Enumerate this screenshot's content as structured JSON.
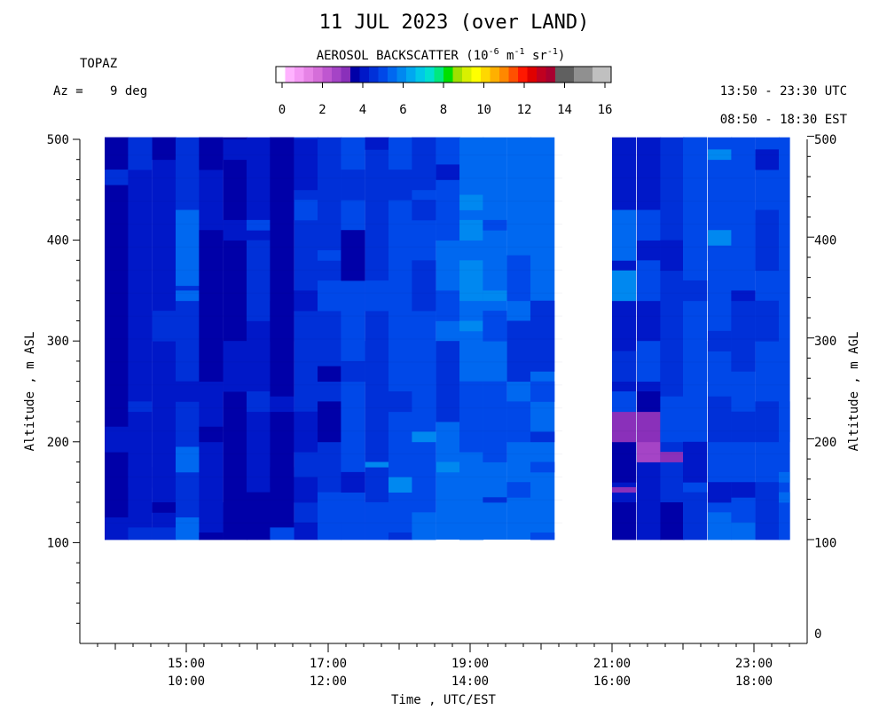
{
  "chart_data": {
    "type": "heatmap",
    "title": "11 JUL 2023 (over LAND)",
    "instrument": "TOPAZ",
    "azimuth_label": "Az =",
    "azimuth_value": "9 deg",
    "time_range_utc": "13:50 - 23:30 UTC",
    "time_range_est": "08:50 - 18:30 EST",
    "colorbar": {
      "label_main": "AEROSOL BACKSCATTER (10",
      "label_exp1": "-6",
      "label_mid1": " m",
      "label_exp2": "-1",
      "label_mid2": " sr",
      "label_exp3": "-1",
      "label_end": ")",
      "ticks": [
        "0",
        "2",
        "4",
        "6",
        "8",
        "10",
        "12",
        "14",
        "16"
      ],
      "range": [
        0,
        16
      ],
      "colors": [
        "#ffffff",
        "#ffb3ff",
        "#f59af5",
        "#e683e6",
        "#d56ed9",
        "#bf57d0",
        "#a544c6",
        "#8a30ba",
        "#0000a8",
        "#0018c8",
        "#0030d8",
        "#0048e8",
        "#0068f0",
        "#0088f0",
        "#00a8f0",
        "#00c8e8",
        "#00e0d0",
        "#00e880",
        "#00e000",
        "#a0e000",
        "#d8f000",
        "#ffff00",
        "#ffd800",
        "#ffb000",
        "#ff8800",
        "#ff5000",
        "#ff1800",
        "#e00000",
        "#c00020",
        "#a80030",
        "#606060",
        "#606060",
        "#909090",
        "#909090",
        "#c0c0c0",
        "#c0c0c0"
      ]
    },
    "x_axis": {
      "label": "Time , UTC/EST",
      "range_hours_utc": [
        13.5,
        23.75
      ],
      "ticks_utc": [
        "15:00",
        "17:00",
        "19:00",
        "21:00",
        "23:00"
      ],
      "ticks_est": [
        "10:00",
        "12:00",
        "14:00",
        "16:00",
        "18:00"
      ]
    },
    "y_axis_left": {
      "label": "Altitude , m ASL",
      "range": [
        0,
        500
      ],
      "ticks": [
        "100",
        "200",
        "300",
        "400",
        "500"
      ]
    },
    "y_axis_right": {
      "label": "Altitude , m AGL",
      "ticks": [
        "0",
        "100",
        "200",
        "300",
        "400",
        "500"
      ]
    },
    "data_altitude_range_m": [
      103,
      502
    ],
    "altitude_bin_m": 11.4,
    "time_segments_utc": [
      [
        13.85,
        20.3
      ],
      [
        21.0,
        23.5
      ]
    ],
    "time_bin_hours": 0.333,
    "color_classes": {
      "navy": "#0000a8",
      "dark": "#0018c8",
      "mid": "#0030d8",
      "royal": "#0048e8",
      "light": "#0068f0",
      "bright": "#0088f0",
      "purple": "#8a30ba",
      "violet": "#a544c6"
    },
    "backscatter_columns": [
      {
        "t": 13.85,
        "base": "navy",
        "patches": [
          [
            103,
            125,
            "dark"
          ],
          [
            190,
            215,
            "dark"
          ],
          [
            400,
            502,
            "navy"
          ],
          [
            455,
            470,
            "mid"
          ]
        ]
      },
      {
        "t": 14.18,
        "base": "dark",
        "patches": [
          [
            103,
            115,
            "mid"
          ],
          [
            155,
            175,
            "dark"
          ],
          [
            230,
            240,
            "mid"
          ],
          [
            470,
            502,
            "mid"
          ]
        ]
      },
      {
        "t": 14.52,
        "base": "dark",
        "patches": [
          [
            103,
            115,
            "mid"
          ],
          [
            130,
            140,
            "navy"
          ],
          [
            300,
            330,
            "mid"
          ],
          [
            480,
            502,
            "navy"
          ]
        ]
      },
      {
        "t": 14.85,
        "base": "mid",
        "patches": [
          [
            103,
            125,
            "light"
          ],
          [
            170,
            195,
            "light"
          ],
          [
            340,
            350,
            "light"
          ],
          [
            355,
            430,
            "light"
          ],
          [
            240,
            260,
            "dark"
          ]
        ]
      },
      {
        "t": 15.18,
        "base": "dark",
        "patches": [
          [
            103,
            110,
            "navy"
          ],
          [
            200,
            215,
            "navy"
          ],
          [
            260,
            410,
            "navy"
          ],
          [
            470,
            502,
            "navy"
          ]
        ]
      },
      {
        "t": 15.52,
        "base": "navy",
        "patches": [
          [
            103,
            140,
            "navy"
          ],
          [
            250,
            300,
            "dark"
          ],
          [
            400,
            420,
            "dark"
          ],
          [
            480,
            500,
            "dark"
          ]
        ]
      },
      {
        "t": 15.85,
        "base": "dark",
        "patches": [
          [
            103,
            150,
            "navy"
          ],
          [
            230,
            250,
            "mid"
          ],
          [
            320,
            400,
            "mid"
          ],
          [
            410,
            420,
            "royal"
          ]
        ]
      },
      {
        "t": 16.18,
        "base": "navy",
        "patches": [
          [
            103,
            115,
            "royal"
          ],
          [
            155,
            175,
            "navy"
          ],
          [
            230,
            245,
            "dark"
          ],
          [
            300,
            340,
            "navy"
          ],
          [
            430,
            502,
            "navy"
          ]
        ]
      },
      {
        "t": 16.52,
        "base": "mid",
        "patches": [
          [
            103,
            120,
            "dark"
          ],
          [
            140,
            165,
            "dark"
          ],
          [
            190,
            230,
            "dark"
          ],
          [
            330,
            350,
            "dark"
          ],
          [
            420,
            440,
            "royal"
          ],
          [
            450,
            500,
            "dark"
          ]
        ]
      },
      {
        "t": 16.85,
        "base": "mid",
        "patches": [
          [
            103,
            150,
            "royal"
          ],
          [
            200,
            240,
            "navy"
          ],
          [
            330,
            360,
            "royal"
          ],
          [
            380,
            390,
            "royal"
          ],
          [
            260,
            275,
            "navy"
          ]
        ]
      },
      {
        "t": 17.18,
        "base": "royal",
        "patches": [
          [
            103,
            120,
            "royal"
          ],
          [
            150,
            170,
            "dark"
          ],
          [
            260,
            280,
            "mid"
          ],
          [
            360,
            410,
            "navy"
          ],
          [
            440,
            470,
            "mid"
          ]
        ]
      },
      {
        "t": 17.52,
        "base": "mid",
        "patches": [
          [
            103,
            140,
            "royal"
          ],
          [
            175,
            180,
            "bright"
          ],
          [
            260,
            300,
            "mid"
          ],
          [
            330,
            360,
            "royal"
          ],
          [
            490,
            502,
            "dark"
          ]
        ]
      },
      {
        "t": 17.85,
        "base": "royal",
        "patches": [
          [
            103,
            110,
            "mid"
          ],
          [
            150,
            165,
            "bright"
          ],
          [
            230,
            250,
            "mid"
          ],
          [
            260,
            280,
            "royal"
          ],
          [
            330,
            480,
            "royal"
          ],
          [
            440,
            470,
            "mid"
          ]
        ]
      },
      {
        "t": 18.18,
        "base": "royal",
        "patches": [
          [
            103,
            130,
            "light"
          ],
          [
            200,
            210,
            "bright"
          ],
          [
            260,
            300,
            "royal"
          ],
          [
            330,
            380,
            "mid"
          ],
          [
            420,
            440,
            "mid"
          ],
          [
            450,
            502,
            "mid"
          ]
        ]
      },
      {
        "t": 18.52,
        "base": "light",
        "patches": [
          [
            170,
            180,
            "bright"
          ],
          [
            220,
            300,
            "mid"
          ],
          [
            320,
            350,
            "royal"
          ],
          [
            400,
            502,
            "royal"
          ],
          [
            460,
            475,
            "dark"
          ]
        ]
      },
      {
        "t": 18.85,
        "base": "light",
        "patches": [
          [
            103,
            115,
            "light"
          ],
          [
            190,
            260,
            "royal"
          ],
          [
            310,
            320,
            "bright"
          ],
          [
            340,
            350,
            "bright"
          ],
          [
            350,
            380,
            "bright"
          ],
          [
            400,
            420,
            "bright"
          ],
          [
            430,
            445,
            "bright"
          ]
        ]
      },
      {
        "t": 19.18,
        "base": "light",
        "patches": [
          [
            140,
            145,
            "mid"
          ],
          [
            180,
            260,
            "royal"
          ],
          [
            300,
            330,
            "royal"
          ],
          [
            340,
            350,
            "bright"
          ],
          [
            410,
            420,
            "royal"
          ]
        ]
      },
      {
        "t": 19.52,
        "base": "light",
        "patches": [
          [
            145,
            160,
            "royal"
          ],
          [
            200,
            240,
            "royal"
          ],
          [
            260,
            320,
            "mid"
          ],
          [
            340,
            385,
            "royal"
          ]
        ]
      },
      {
        "t": 19.85,
        "base": "light",
        "patches": [
          [
            103,
            110,
            "royal"
          ],
          [
            170,
            180,
            "royal"
          ],
          [
            200,
            210,
            "mid"
          ],
          [
            240,
            260,
            "royal"
          ],
          [
            270,
            340,
            "mid"
          ]
        ]
      },
      {
        "t": 21.0,
        "base": "dark",
        "patches": [
          [
            103,
            140,
            "navy"
          ],
          [
            150,
            155,
            "purple"
          ],
          [
            160,
            200,
            "navy"
          ],
          [
            200,
            230,
            "purple"
          ],
          [
            230,
            250,
            "royal"
          ],
          [
            260,
            290,
            "mid"
          ],
          [
            340,
            350,
            "bright"
          ],
          [
            350,
            370,
            "bright"
          ],
          [
            380,
            430,
            "light"
          ]
        ]
      },
      {
        "t": 21.35,
        "base": "dark",
        "patches": [
          [
            103,
            115,
            "dark"
          ],
          [
            180,
            200,
            "violet"
          ],
          [
            200,
            230,
            "purple"
          ],
          [
            230,
            250,
            "navy"
          ],
          [
            260,
            300,
            "royal"
          ],
          [
            340,
            380,
            "royal"
          ],
          [
            400,
            430,
            "royal"
          ]
        ]
      },
      {
        "t": 21.68,
        "base": "mid",
        "patches": [
          [
            103,
            140,
            "navy"
          ],
          [
            180,
            190,
            "purple"
          ],
          [
            200,
            245,
            "royal"
          ],
          [
            260,
            300,
            "mid"
          ],
          [
            370,
            400,
            "dark"
          ]
        ]
      },
      {
        "t": 22.0,
        "base": "royal",
        "patches": [
          [
            103,
            150,
            "mid"
          ],
          [
            160,
            200,
            "dark"
          ],
          [
            260,
            300,
            "royal"
          ],
          [
            340,
            360,
            "mid"
          ],
          [
            380,
            410,
            "royal"
          ],
          [
            460,
            502,
            "royal"
          ]
        ]
      },
      {
        "t": 22.35,
        "base": "royal",
        "patches": [
          [
            103,
            130,
            "light"
          ],
          [
            140,
            160,
            "dark"
          ],
          [
            200,
            245,
            "mid"
          ],
          [
            290,
            310,
            "mid"
          ],
          [
            395,
            410,
            "bright"
          ],
          [
            480,
            490,
            "bright"
          ]
        ]
      },
      {
        "t": 22.68,
        "base": "royal",
        "patches": [
          [
            103,
            120,
            "light"
          ],
          [
            145,
            160,
            "dark"
          ],
          [
            200,
            230,
            "mid"
          ],
          [
            270,
            340,
            "mid"
          ],
          [
            340,
            350,
            "dark"
          ]
        ]
      },
      {
        "t": 23.02,
        "base": "royal",
        "patches": [
          [
            103,
            160,
            "mid"
          ],
          [
            200,
            240,
            "mid"
          ],
          [
            300,
            340,
            "mid"
          ],
          [
            370,
            430,
            "mid"
          ],
          [
            470,
            490,
            "dark"
          ]
        ]
      },
      {
        "t": 23.35,
        "base": "royal",
        "patches": [
          [
            103,
            150,
            "royal"
          ],
          [
            140,
            150,
            "light"
          ],
          [
            160,
            170,
            "light"
          ],
          [
            200,
            240,
            "royal"
          ]
        ]
      }
    ]
  }
}
